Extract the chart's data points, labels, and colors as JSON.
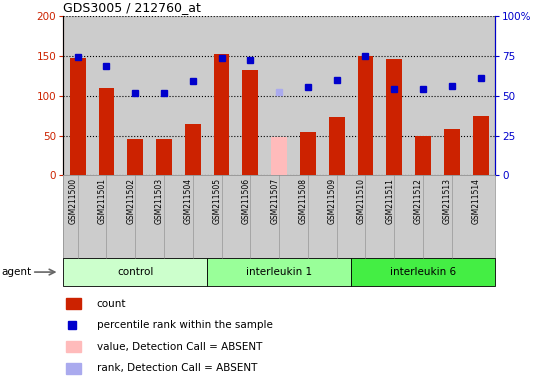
{
  "title": "GDS3005 / 212760_at",
  "samples": [
    "GSM211500",
    "GSM211501",
    "GSM211502",
    "GSM211503",
    "GSM211504",
    "GSM211505",
    "GSM211506",
    "GSM211507",
    "GSM211508",
    "GSM211509",
    "GSM211510",
    "GSM211511",
    "GSM211512",
    "GSM211513",
    "GSM211514"
  ],
  "bar_values": [
    148,
    110,
    46,
    46,
    65,
    153,
    133,
    48,
    55,
    73,
    150,
    146,
    50,
    58,
    75
  ],
  "bar_absent": [
    false,
    false,
    false,
    false,
    false,
    false,
    false,
    true,
    false,
    false,
    false,
    false,
    false,
    false,
    false
  ],
  "dot_values": [
    149,
    138,
    103,
    104,
    118,
    148,
    145,
    105,
    111,
    120,
    150,
    108,
    108,
    112,
    122
  ],
  "dot_absent": [
    false,
    false,
    false,
    false,
    false,
    false,
    false,
    true,
    false,
    false,
    false,
    false,
    false,
    false,
    false
  ],
  "bar_color": "#cc2200",
  "bar_absent_color": "#ffbbbb",
  "dot_color": "#0000cc",
  "dot_absent_color": "#aaaaee",
  "left_ylim": [
    0,
    200
  ],
  "right_ylim": [
    0,
    100
  ],
  "left_yticks": [
    0,
    50,
    100,
    150,
    200
  ],
  "right_yticks": [
    0,
    25,
    50,
    75,
    100
  ],
  "right_yticklabels": [
    "0",
    "25",
    "50",
    "75",
    "100%"
  ],
  "plot_bg": "#cccccc",
  "sample_bg": "#cccccc",
  "groups": [
    {
      "label": "control",
      "start": 0,
      "end": 5,
      "color": "#ccffcc"
    },
    {
      "label": "interleukin 1",
      "start": 5,
      "end": 10,
      "color": "#99ff99"
    },
    {
      "label": "interleukin 6",
      "start": 10,
      "end": 15,
      "color": "#44ee44"
    }
  ],
  "legend": [
    {
      "type": "rect",
      "color": "#cc2200",
      "label": "count"
    },
    {
      "type": "square",
      "color": "#0000cc",
      "label": "percentile rank within the sample"
    },
    {
      "type": "rect",
      "color": "#ffbbbb",
      "label": "value, Detection Call = ABSENT"
    },
    {
      "type": "rect",
      "color": "#aaaaee",
      "label": "rank, Detection Call = ABSENT"
    }
  ]
}
